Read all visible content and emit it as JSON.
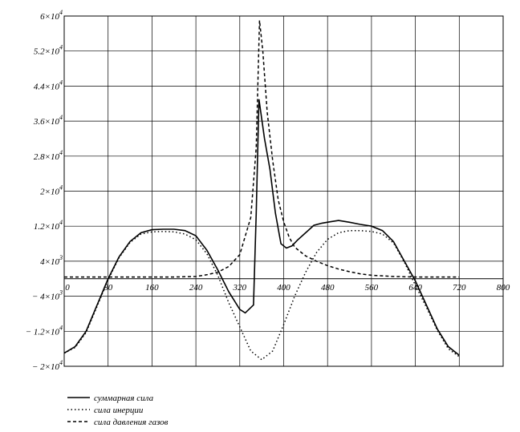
{
  "chart_data": {
    "type": "line",
    "title": "",
    "xlabel": "",
    "ylabel": "",
    "xlim": [
      0,
      800
    ],
    "ylim": [
      -20000,
      60000
    ],
    "grid": true,
    "x_ticks": [
      0,
      80,
      160,
      240,
      320,
      400,
      480,
      560,
      640,
      720,
      800
    ],
    "x_tick_labels": [
      "0",
      "80",
      "160",
      "240",
      "320",
      "400",
      "480",
      "560",
      "640",
      "720",
      "800"
    ],
    "y_ticks": [
      60000,
      52000,
      44000,
      36000,
      28000,
      20000,
      12000,
      4000,
      -4000,
      -12000,
      -20000
    ],
    "y_tick_labels": [
      {
        "base": "6×10",
        "exp": "4"
      },
      {
        "base": "5.2×10",
        "exp": "4"
      },
      {
        "base": "4.4×10",
        "exp": "4"
      },
      {
        "base": "3.6×10",
        "exp": "4"
      },
      {
        "base": "2.8×10",
        "exp": "4"
      },
      {
        "base": "2×10",
        "exp": "4"
      },
      {
        "base": "1.2×10",
        "exp": "4"
      },
      {
        "base": "4×10",
        "exp": "3"
      },
      {
        "base": "− 4×10",
        "exp": "3"
      },
      {
        "base": "− 1.2×10",
        "exp": "4"
      },
      {
        "base": "− 2×10",
        "exp": "4"
      }
    ],
    "legend_position": "bottom-left",
    "series": [
      {
        "name": "суммарная сила",
        "style": "solid",
        "color": "#000000",
        "points": [
          [
            0,
            -17000
          ],
          [
            20,
            -15500
          ],
          [
            40,
            -12000
          ],
          [
            60,
            -6000
          ],
          [
            80,
            0
          ],
          [
            100,
            5000
          ],
          [
            120,
            8500
          ],
          [
            140,
            10500
          ],
          [
            160,
            11200
          ],
          [
            180,
            11300
          ],
          [
            200,
            11300
          ],
          [
            220,
            11000
          ],
          [
            240,
            9800
          ],
          [
            260,
            6500
          ],
          [
            280,
            2000
          ],
          [
            300,
            -3000
          ],
          [
            320,
            -7000
          ],
          [
            330,
            -7800
          ],
          [
            345,
            -6000
          ],
          [
            350,
            15000
          ],
          [
            355,
            41000
          ],
          [
            365,
            32000
          ],
          [
            375,
            25000
          ],
          [
            385,
            15000
          ],
          [
            395,
            8000
          ],
          [
            405,
            7000
          ],
          [
            415,
            7500
          ],
          [
            425,
            8800
          ],
          [
            440,
            10500
          ],
          [
            455,
            12200
          ],
          [
            470,
            12700
          ],
          [
            485,
            13000
          ],
          [
            500,
            13300
          ],
          [
            520,
            12900
          ],
          [
            540,
            12400
          ],
          [
            560,
            12000
          ],
          [
            580,
            11000
          ],
          [
            600,
            8500
          ],
          [
            620,
            4000
          ],
          [
            640,
            -500
          ],
          [
            660,
            -6000
          ],
          [
            680,
            -11500
          ],
          [
            700,
            -15500
          ],
          [
            720,
            -17500
          ]
        ]
      },
      {
        "name": "сила инерции",
        "style": "dotted",
        "color": "#000000",
        "points": [
          [
            0,
            -17000
          ],
          [
            20,
            -15700
          ],
          [
            40,
            -12300
          ],
          [
            60,
            -6300
          ],
          [
            80,
            -300
          ],
          [
            100,
            4800
          ],
          [
            120,
            8300
          ],
          [
            140,
            10200
          ],
          [
            160,
            10700
          ],
          [
            180,
            10800
          ],
          [
            200,
            10700
          ],
          [
            220,
            10200
          ],
          [
            240,
            8900
          ],
          [
            260,
            5700
          ],
          [
            280,
            800
          ],
          [
            300,
            -5500
          ],
          [
            320,
            -11000
          ],
          [
            340,
            -16500
          ],
          [
            360,
            -18500
          ],
          [
            380,
            -16500
          ],
          [
            400,
            -10500
          ],
          [
            420,
            -4000
          ],
          [
            440,
            1500
          ],
          [
            460,
            6000
          ],
          [
            480,
            9000
          ],
          [
            500,
            10500
          ],
          [
            520,
            11000
          ],
          [
            540,
            11000
          ],
          [
            560,
            10800
          ],
          [
            580,
            10200
          ],
          [
            600,
            8200
          ],
          [
            620,
            3800
          ],
          [
            640,
            -1500
          ],
          [
            660,
            -6500
          ],
          [
            680,
            -11800
          ],
          [
            700,
            -16000
          ],
          [
            720,
            -17800
          ]
        ]
      },
      {
        "name": "сила давления газов",
        "style": "dashed",
        "color": "#000000",
        "points": [
          [
            0,
            400
          ],
          [
            40,
            400
          ],
          [
            80,
            400
          ],
          [
            120,
            400
          ],
          [
            160,
            400
          ],
          [
            200,
            400
          ],
          [
            240,
            500
          ],
          [
            260,
            900
          ],
          [
            280,
            1500
          ],
          [
            300,
            2800
          ],
          [
            320,
            5500
          ],
          [
            340,
            14000
          ],
          [
            350,
            30000
          ],
          [
            356,
            59000
          ],
          [
            362,
            52000
          ],
          [
            370,
            38000
          ],
          [
            380,
            27000
          ],
          [
            390,
            18000
          ],
          [
            400,
            13000
          ],
          [
            410,
            9500
          ],
          [
            420,
            7200
          ],
          [
            440,
            5200
          ],
          [
            460,
            4000
          ],
          [
            480,
            3000
          ],
          [
            500,
            2200
          ],
          [
            520,
            1600
          ],
          [
            540,
            1100
          ],
          [
            560,
            800
          ],
          [
            600,
            500
          ],
          [
            640,
            400
          ],
          [
            680,
            400
          ],
          [
            720,
            400
          ]
        ]
      }
    ]
  }
}
